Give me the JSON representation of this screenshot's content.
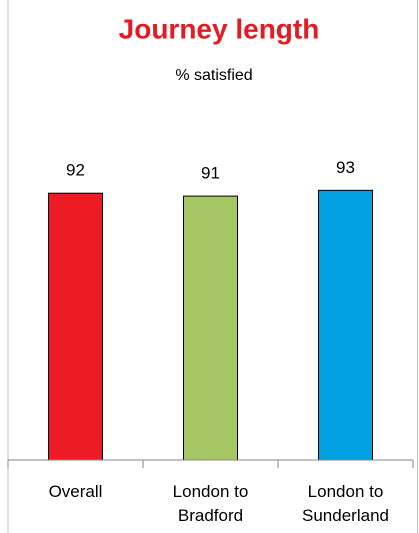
{
  "chart_data": {
    "type": "bar",
    "title": "Journey length",
    "subtitle": "% satisfied",
    "categories": [
      "Overall",
      "London to Bradford",
      "London to Sunderland"
    ],
    "values": [
      92,
      91,
      93
    ],
    "colors": [
      "#ed1c24",
      "#a5c663",
      "#00a0e2"
    ],
    "ylim": [
      0,
      100
    ]
  }
}
